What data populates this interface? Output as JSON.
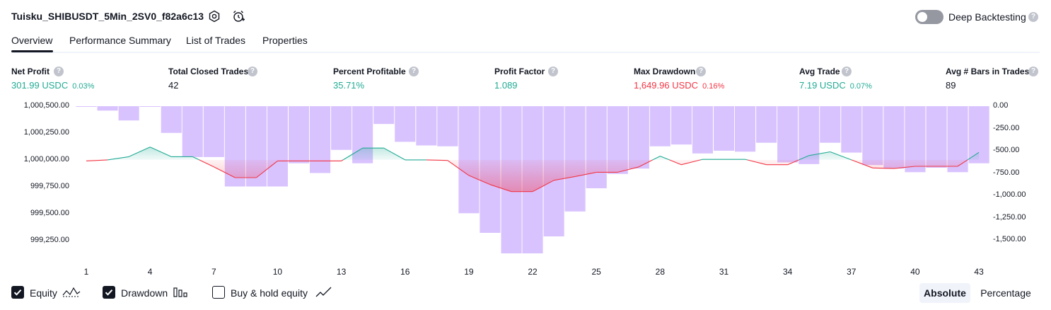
{
  "header": {
    "strategy_name": "Tuisku_SHIBUSDT_5Min_2SV0_f82a6c13",
    "deep_backtesting_label": "Deep Backtesting",
    "deep_backtesting_enabled": false,
    "help_glyph": "?"
  },
  "tabs": [
    {
      "label": "Overview",
      "active": true
    },
    {
      "label": "Performance Summary",
      "active": false
    },
    {
      "label": "List of Trades",
      "active": false
    },
    {
      "label": "Properties",
      "active": false
    }
  ],
  "metrics": [
    {
      "label": "Net Profit",
      "value": "301.99 USDC",
      "sub": "0.03%",
      "tone": "green"
    },
    {
      "label": "Total Closed Trades",
      "value": "42",
      "sub": "",
      "tone": "dark"
    },
    {
      "label": "Percent Profitable",
      "value": "35.71%",
      "sub": "",
      "tone": "green"
    },
    {
      "label": "Profit Factor",
      "value": "1.089",
      "sub": "",
      "tone": "green"
    },
    {
      "label": "Max Drawdown",
      "value": "1,649.96 USDC",
      "sub": "0.16%",
      "tone": "red"
    },
    {
      "label": "Avg Trade",
      "value": "7.19 USDC",
      "sub": "0.07%",
      "tone": "green"
    },
    {
      "label": "Avg # Bars in Trades",
      "value": "89",
      "sub": "",
      "tone": "dark"
    }
  ],
  "chart_data": {
    "type": "line",
    "series": [
      {
        "name": "Equity",
        "x": [
          1,
          2,
          3,
          4,
          5,
          6,
          7,
          8,
          9,
          10,
          11,
          12,
          13,
          14,
          15,
          16,
          17,
          18,
          19,
          20,
          21,
          22,
          23,
          24,
          25,
          26,
          27,
          28,
          29,
          30,
          31,
          32,
          33,
          34,
          35,
          36,
          37,
          38,
          39,
          40,
          41,
          42,
          43
        ],
        "values": [
          999990,
          1000000,
          1000030,
          1000120,
          1000030,
          1000030,
          999935,
          999835,
          999835,
          999990,
          999990,
          999990,
          999990,
          1000110,
          1000110,
          1000000,
          1000000,
          999995,
          999855,
          999770,
          999705,
          999705,
          999810,
          999845,
          999885,
          999885,
          999935,
          1000035,
          999955,
          1000005,
          1000005,
          1000005,
          999955,
          999955,
          1000040,
          1000075,
          1000000,
          999925,
          999920,
          999940,
          999940,
          999940,
          1000070
        ],
        "color": "#22ab94"
      },
      {
        "name": "Drawdown",
        "x": [
          1,
          2,
          3,
          4,
          5,
          6,
          7,
          8,
          9,
          10,
          11,
          12,
          13,
          14,
          15,
          16,
          17,
          18,
          19,
          20,
          21,
          22,
          23,
          24,
          25,
          26,
          27,
          28,
          29,
          30,
          31,
          32,
          33,
          34,
          35,
          36,
          37,
          38,
          39,
          40,
          41,
          42,
          43
        ],
        "values": [
          -5,
          -50,
          -160,
          0,
          -300,
          -570,
          -570,
          -900,
          -900,
          -900,
          -640,
          -750,
          -490,
          -640,
          -200,
          -400,
          -440,
          -450,
          -1200,
          -1420,
          -1650,
          -1650,
          -1460,
          -1180,
          -920,
          -760,
          -700,
          -450,
          -430,
          -530,
          -500,
          -510,
          -410,
          -630,
          -650,
          -410,
          -520,
          -660,
          -700,
          -740,
          -690,
          -740,
          -640
        ],
        "color": "#b388ff"
      }
    ],
    "y_left_ticks": [
      "1,000,500.00",
      "1,000,250.00",
      "1,000,000.00",
      "999,750.00",
      "999,500.00",
      "999,250.00"
    ],
    "y_right_ticks": [
      "0.00",
      "-250.00",
      "-500.00",
      "-750.00",
      "-1,000.00",
      "-1,250.00",
      "-1,500.00"
    ],
    "x_ticks": [
      "1",
      "4",
      "7",
      "10",
      "13",
      "16",
      "19",
      "22",
      "25",
      "28",
      "31",
      "34",
      "37",
      "40",
      "43"
    ],
    "ylim_left": [
      999130,
      1000500
    ],
    "ylim_right": [
      -1650,
      0
    ]
  },
  "legend": {
    "equity": {
      "label": "Equity",
      "checked": true
    },
    "drawdown": {
      "label": "Drawdown",
      "checked": true
    },
    "buy_hold": {
      "label": "Buy & hold equity",
      "checked": false
    }
  },
  "scale_buttons": {
    "absolute": "Absolute",
    "percentage": "Percentage",
    "selected": "absolute"
  }
}
